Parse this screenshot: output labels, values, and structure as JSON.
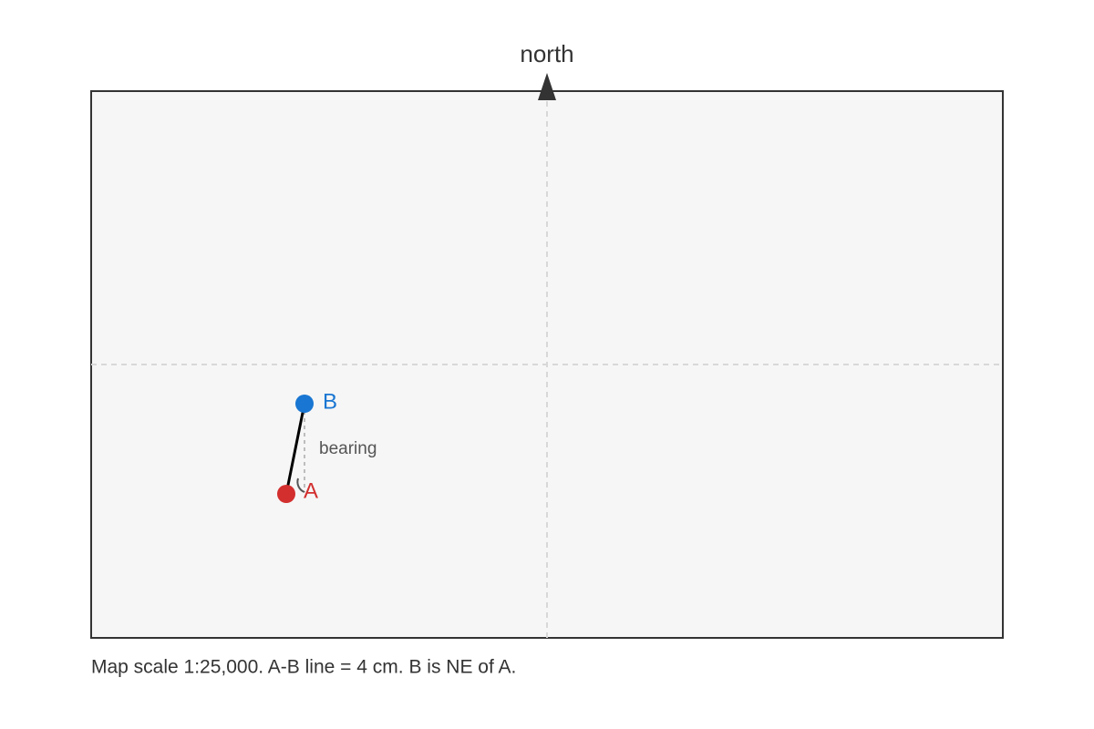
{
  "labels": {
    "north": "north",
    "point_b": "B",
    "point_a": "A",
    "bearing": "bearing"
  },
  "caption": "Map scale 1:25,000. A-B line = 4 cm. B is NE of A."
}
